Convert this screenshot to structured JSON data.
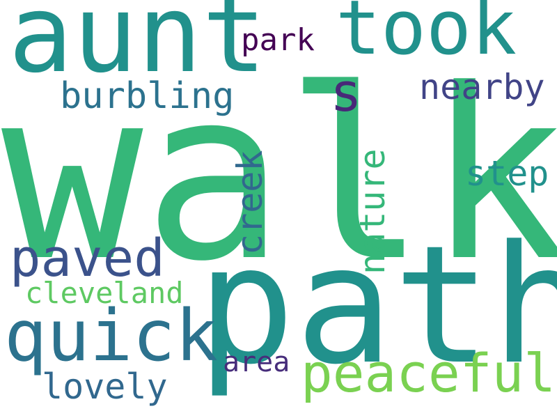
{
  "words": [
    {
      "id": "walk",
      "text": "walk",
      "color": "#35b779"
    },
    {
      "id": "path",
      "text": "path",
      "color": "#21918c"
    },
    {
      "id": "aunt",
      "text": "aunt",
      "color": "#21918c"
    },
    {
      "id": "took",
      "text": "took",
      "color": "#21918c"
    },
    {
      "id": "quick",
      "text": "quick",
      "color": "#2c728e"
    },
    {
      "id": "paved",
      "text": "paved",
      "color": "#3b528b"
    },
    {
      "id": "peaceful",
      "text": "peaceful",
      "color": "#7ad151"
    },
    {
      "id": "s",
      "text": "s",
      "color": "#482878"
    },
    {
      "id": "nearby",
      "text": "nearby",
      "color": "#414487"
    },
    {
      "id": "burbling",
      "text": "burbling",
      "color": "#2c728e"
    },
    {
      "id": "park",
      "text": "park",
      "color": "#440154"
    },
    {
      "id": "step",
      "text": "step",
      "color": "#21918c"
    },
    {
      "id": "cleveland",
      "text": "cleveland",
      "color": "#5ec962"
    },
    {
      "id": "lovely",
      "text": "lovely",
      "color": "#31688e"
    },
    {
      "id": "area",
      "text": "area",
      "color": "#472d7b"
    },
    {
      "id": "creek",
      "text": "creek",
      "color": "#31688e",
      "orientation": "vertical"
    },
    {
      "id": "nature",
      "text": "nature",
      "color": "#35b779",
      "orientation": "vertical"
    }
  ]
}
